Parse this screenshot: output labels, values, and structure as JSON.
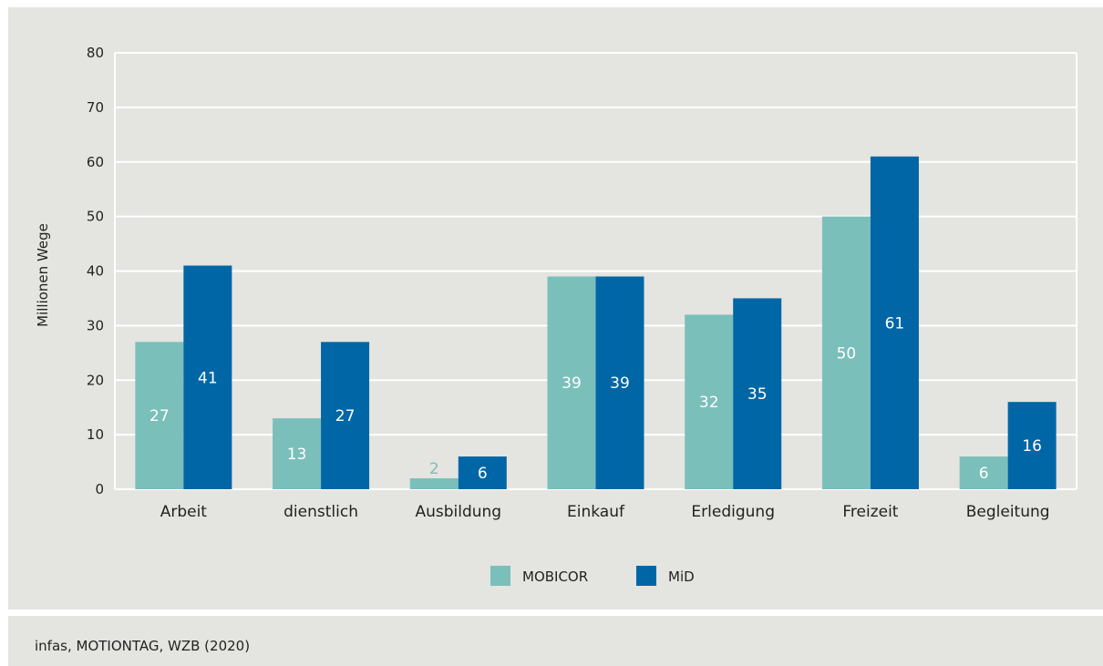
{
  "source": "infas, MOTIONTAG, WZB (2020)",
  "colors": {
    "background": "#e4e4e0",
    "grid": "#ffffff",
    "mobicor": "#7bbfba",
    "mid": "#0066a6"
  },
  "chart_data": {
    "type": "bar",
    "ylabel": "Millionen Wege",
    "xlabel": "",
    "ylim": [
      0,
      80
    ],
    "yticks": [
      0,
      10,
      20,
      30,
      40,
      50,
      60,
      70,
      80
    ],
    "categories": [
      "Arbeit",
      "dienstlich",
      "Ausbildung",
      "Einkauf",
      "Erledigung",
      "Freizeit",
      "Begleitung"
    ],
    "series": [
      {
        "name": "MOBICOR",
        "color": "#7bbfba",
        "values": [
          27,
          13,
          2,
          39,
          32,
          50,
          6
        ]
      },
      {
        "name": "MiD",
        "color": "#0066a6",
        "values": [
          41,
          27,
          6,
          39,
          35,
          61,
          16
        ]
      }
    ],
    "data_labels": true,
    "grid": true,
    "legend": "bottom-center"
  }
}
